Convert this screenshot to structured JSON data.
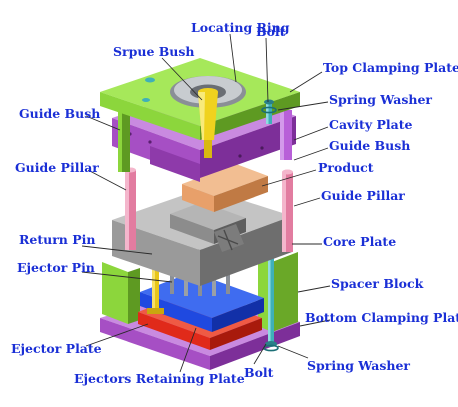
{
  "colors": {
    "label": "#1a2fd6",
    "top_clamping_plate": "#8cd63c",
    "cavity_plate": "#a64fc4",
    "core_plate": "#9a9a9a",
    "spacer_block": "#8cd63c",
    "bottom_clamping_plate": "#a64fc4",
    "ejector_plate": "#e02a1a",
    "ejectors_retaining_plate": "#1f49e0",
    "product": "#e8a06a",
    "guide_pillar": "#e27ca0",
    "sprue_bush": "#f0d21e",
    "bolt": "#3fb0b8"
  },
  "labels": {
    "locating_ring": "Locating Ring",
    "sprue_bush": "Srpue Bush",
    "bolt_top": "Bolt",
    "top_clamping_plate": "Top Clamping Plate",
    "spring_washer_top": "Spring Washer",
    "guide_bush_left": "Guide Bush",
    "cavity_plate": "Cavity Plate",
    "guide_bush_right": "Guide Bush",
    "guide_pillar_left": "Guide Pillar",
    "product": "Product",
    "guide_pillar_right": "Guide Pillar",
    "return_pin": "Return Pin",
    "core_plate": "Core Plate",
    "ejector_pin": "Ejector Pin",
    "spacer_block": "Spacer Block",
    "bottom_clamping_plate": "Bottom Clamping Plate",
    "ejector_plate": "Ejector Plate",
    "spring_washer_bottom": "Spring Washer",
    "bolt_bottom": "Bolt",
    "ejectors_retaining_plate": "Ejectors Retaining Plate"
  }
}
